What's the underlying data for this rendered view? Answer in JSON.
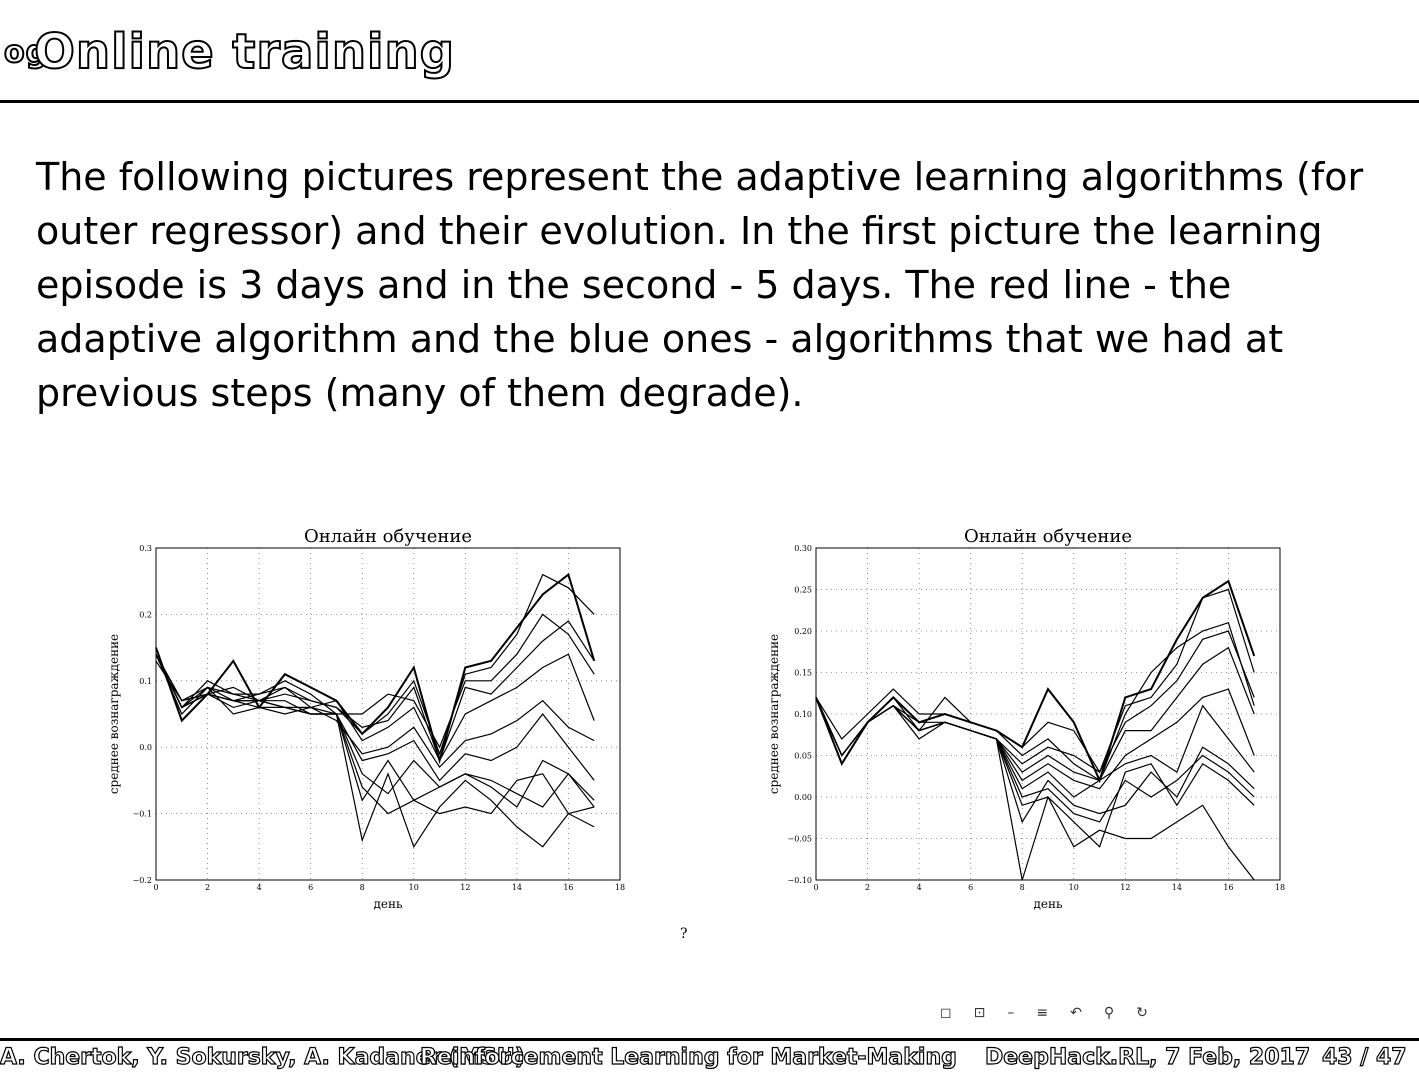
{
  "slide": {
    "title": "Online training",
    "title_prefix": "og",
    "body": "The following pictures represent the adaptive learning algorithms (for outer regressor) and their evolution. In the first picture the learning episode is 3 days and in the second - 5 days. The red line - the adaptive algorithm and the blue ones - algorithms that we had at previous steps (many of them degrade).",
    "stray_char": "?"
  },
  "footer": {
    "authors": "A. Chertok, Y. Sokursky, A. Kadaner (MSU)",
    "talk": "Reinforcement Learning for Market-Making",
    "event": "DeepHack.RL, 7 Feb, 2017",
    "page": "43 / 47"
  },
  "nav_icons": [
    "frame-icon",
    "subsection-icon",
    "section-icon",
    "align-icon",
    "back-icon",
    "search-icon",
    "refresh-icon"
  ],
  "colors": {
    "line": "#000000",
    "grid": "#777777"
  },
  "chart_data": [
    {
      "type": "line",
      "title": "Онлайн обучение",
      "xlabel": "день",
      "ylabel": "среднее вознаграждение",
      "xlim": [
        0,
        18
      ],
      "ylim": [
        -0.2,
        0.3
      ],
      "xticks": [
        0,
        2,
        4,
        6,
        8,
        10,
        12,
        14,
        16,
        18
      ],
      "yticks": [
        -0.2,
        -0.1,
        0.0,
        0.1,
        0.2,
        0.3
      ],
      "xtick_labels": [
        "0",
        "2",
        "4",
        "6",
        "8",
        "10",
        "12",
        "14",
        "16",
        "18"
      ],
      "ytick_labels": [
        "−0.2",
        "−0.1",
        "0.0",
        "0.1",
        "0.2",
        "0.3"
      ],
      "grid": true,
      "series": [
        {
          "x": [
            0,
            1,
            2,
            3,
            4,
            5,
            6,
            7,
            8,
            9,
            10,
            11,
            12,
            13,
            14,
            15,
            16,
            17
          ],
          "values": [
            0.15,
            0.04,
            0.08,
            0.13,
            0.06,
            0.11,
            0.09,
            0.07,
            0.02,
            0.06,
            0.12,
            -0.02,
            0.12,
            0.13,
            0.18,
            0.23,
            0.26,
            0.13
          ]
        },
        {
          "x": [
            0,
            1,
            2,
            3,
            4,
            5,
            6,
            7,
            8,
            9,
            10,
            11,
            12,
            13,
            14,
            15,
            16,
            17
          ],
          "values": [
            0.14,
            0.07,
            0.08,
            0.09,
            0.07,
            0.09,
            0.07,
            0.06,
            0.02,
            0.05,
            0.1,
            -0.01,
            0.11,
            0.12,
            0.17,
            0.26,
            0.24,
            0.2
          ]
        },
        {
          "x": [
            0,
            1,
            2,
            3,
            4,
            5,
            6,
            7,
            8,
            9,
            10,
            11,
            12,
            13,
            14,
            15,
            16,
            17
          ],
          "values": [
            0.13,
            0.07,
            0.09,
            0.08,
            0.08,
            0.1,
            0.08,
            0.05,
            0.05,
            0.08,
            0.07,
            0.0,
            0.1,
            0.1,
            0.14,
            0.2,
            0.17,
            0.11
          ]
        },
        {
          "x": [
            0,
            1,
            2,
            3,
            4,
            5,
            6,
            7,
            8,
            9,
            10,
            11,
            12,
            13,
            14,
            15,
            16,
            17
          ],
          "values": [
            0.14,
            0.06,
            0.1,
            0.08,
            0.07,
            0.08,
            0.07,
            0.06,
            0.03,
            0.04,
            0.09,
            -0.02,
            0.09,
            0.08,
            0.12,
            0.16,
            0.19,
            0.13
          ]
        },
        {
          "x": [
            0,
            1,
            2,
            3,
            4,
            5,
            6,
            7,
            8,
            9,
            10,
            11,
            12,
            13,
            14,
            15,
            16,
            17
          ],
          "values": [
            0.14,
            0.07,
            0.08,
            0.07,
            0.08,
            0.09,
            0.06,
            0.07,
            0.01,
            0.03,
            0.06,
            -0.02,
            0.05,
            0.07,
            0.09,
            0.12,
            0.14,
            0.04
          ]
        },
        {
          "x": [
            0,
            1,
            2,
            3,
            4,
            5,
            6,
            7,
            8,
            9,
            10,
            11,
            12,
            13,
            14,
            15,
            16,
            17
          ],
          "values": [
            0.14,
            0.05,
            0.09,
            0.05,
            0.06,
            0.05,
            0.06,
            0.04,
            -0.01,
            0.0,
            0.03,
            -0.03,
            0.01,
            0.02,
            0.04,
            0.07,
            0.03,
            0.01
          ]
        },
        {
          "x": [
            0,
            1,
            2,
            3,
            4,
            5,
            6,
            7,
            8,
            9,
            10,
            11,
            12,
            13,
            14,
            15,
            16,
            17
          ],
          "values": [
            0.14,
            0.06,
            0.08,
            0.06,
            0.07,
            0.07,
            0.05,
            0.05,
            -0.02,
            -0.01,
            0.01,
            -0.05,
            -0.01,
            -0.02,
            0.0,
            0.05,
            0.0,
            -0.05
          ]
        },
        {
          "x": [
            0,
            1,
            2,
            3,
            4,
            5,
            6,
            7,
            8,
            9,
            10,
            11,
            12,
            13,
            14,
            15,
            16,
            17
          ],
          "values": [
            0.14,
            0.06,
            0.09,
            0.07,
            0.06,
            0.06,
            0.06,
            0.05,
            -0.04,
            -0.07,
            -0.02,
            -0.06,
            -0.04,
            -0.06,
            -0.09,
            -0.02,
            -0.04,
            -0.09
          ]
        },
        {
          "x": [
            0,
            1,
            2,
            3,
            4,
            5,
            6,
            7,
            8,
            9,
            10,
            11,
            12,
            13,
            14,
            15,
            16,
            17
          ],
          "values": [
            0.14,
            0.06,
            0.08,
            0.07,
            0.07,
            0.06,
            0.05,
            0.05,
            -0.06,
            -0.1,
            -0.08,
            -0.1,
            -0.09,
            -0.1,
            -0.05,
            -0.04,
            -0.1,
            -0.12
          ]
        },
        {
          "x": [
            0,
            1,
            2,
            3,
            4,
            5,
            6,
            7,
            8,
            9,
            10,
            11,
            12,
            13,
            14,
            15,
            16,
            17
          ],
          "values": [
            0.14,
            0.06,
            0.08,
            0.07,
            0.07,
            0.06,
            0.05,
            0.05,
            -0.14,
            -0.04,
            -0.15,
            -0.09,
            -0.05,
            -0.08,
            -0.12,
            -0.15,
            -0.1,
            -0.09
          ]
        },
        {
          "x": [
            0,
            1,
            2,
            3,
            4,
            5,
            6,
            7,
            8,
            9,
            10,
            11,
            12,
            13,
            14,
            15,
            16,
            17
          ],
          "values": [
            0.14,
            0.06,
            0.08,
            0.07,
            0.07,
            0.06,
            0.05,
            0.05,
            -0.08,
            -0.02,
            -0.08,
            -0.06,
            -0.04,
            -0.05,
            -0.07,
            -0.09,
            -0.04,
            -0.08
          ]
        }
      ]
    },
    {
      "type": "line",
      "title": "Онлайн обучение",
      "xlabel": "день",
      "ylabel": "среднее вознаграждение",
      "xlim": [
        0,
        18
      ],
      "ylim": [
        -0.1,
        0.3
      ],
      "xticks": [
        0,
        2,
        4,
        6,
        8,
        10,
        12,
        14,
        16,
        18
      ],
      "yticks": [
        -0.1,
        -0.05,
        0.0,
        0.05,
        0.1,
        0.15,
        0.2,
        0.25,
        0.3
      ],
      "xtick_labels": [
        "0",
        "2",
        "4",
        "6",
        "8",
        "10",
        "12",
        "14",
        "16",
        "18"
      ],
      "ytick_labels": [
        "−0.10",
        "−0.05",
        "0.00",
        "0.05",
        "0.10",
        "0.15",
        "0.20",
        "0.25",
        "0.30"
      ],
      "grid": true,
      "series": [
        {
          "x": [
            0,
            1,
            2,
            3,
            4,
            5,
            6,
            7,
            8,
            9,
            10,
            11,
            12,
            13,
            14,
            15,
            16,
            17
          ],
          "values": [
            0.12,
            0.04,
            0.09,
            0.12,
            0.09,
            0.1,
            0.09,
            0.08,
            0.06,
            0.13,
            0.09,
            0.02,
            0.12,
            0.13,
            0.19,
            0.24,
            0.26,
            0.17
          ]
        },
        {
          "x": [
            0,
            1,
            2,
            3,
            4,
            5,
            6,
            7,
            8,
            9,
            10,
            11,
            12,
            13,
            14,
            15,
            16,
            17
          ],
          "values": [
            0.12,
            0.07,
            0.1,
            0.13,
            0.1,
            0.1,
            0.09,
            0.08,
            0.06,
            0.09,
            0.08,
            0.03,
            0.11,
            0.12,
            0.16,
            0.24,
            0.25,
            0.15
          ]
        },
        {
          "x": [
            0,
            1,
            2,
            3,
            4,
            5,
            6,
            7,
            8,
            9,
            10,
            11,
            12,
            13,
            14,
            15,
            16,
            17
          ],
          "values": [
            0.12,
            0.05,
            0.09,
            0.12,
            0.08,
            0.12,
            0.09,
            0.08,
            0.05,
            0.07,
            0.04,
            0.02,
            0.1,
            0.15,
            0.18,
            0.2,
            0.21,
            0.11
          ]
        },
        {
          "x": [
            0,
            1,
            2,
            3,
            4,
            5,
            6,
            7,
            8,
            9,
            10,
            11,
            12,
            13,
            14,
            15,
            16,
            17
          ],
          "values": [
            0.12,
            0.05,
            0.09,
            0.11,
            0.09,
            0.09,
            0.08,
            0.07,
            0.04,
            0.06,
            0.05,
            0.03,
            0.09,
            0.11,
            0.14,
            0.19,
            0.2,
            0.12
          ]
        },
        {
          "x": [
            0,
            1,
            2,
            3,
            4,
            5,
            6,
            7,
            8,
            9,
            10,
            11,
            12,
            13,
            14,
            15,
            16,
            17
          ],
          "values": [
            0.12,
            0.05,
            0.09,
            0.11,
            0.07,
            0.09,
            0.08,
            0.07,
            0.03,
            0.05,
            0.03,
            0.02,
            0.08,
            0.08,
            0.12,
            0.16,
            0.18,
            0.1
          ]
        },
        {
          "x": [
            0,
            1,
            2,
            3,
            4,
            5,
            6,
            7,
            8,
            9,
            10,
            11,
            12,
            13,
            14,
            15,
            16,
            17
          ],
          "values": [
            0.12,
            0.05,
            0.09,
            0.11,
            0.08,
            0.09,
            0.08,
            0.07,
            0.02,
            0.04,
            0.02,
            0.01,
            0.05,
            0.07,
            0.09,
            0.12,
            0.13,
            0.05
          ]
        },
        {
          "x": [
            0,
            1,
            2,
            3,
            4,
            5,
            6,
            7,
            8,
            9,
            10,
            11,
            12,
            13,
            14,
            15,
            16,
            17
          ],
          "values": [
            0.12,
            0.05,
            0.09,
            0.11,
            0.08,
            0.09,
            0.08,
            0.07,
            0.01,
            0.03,
            0.0,
            0.02,
            0.04,
            0.05,
            0.03,
            0.11,
            0.07,
            0.03
          ]
        },
        {
          "x": [
            0,
            1,
            2,
            3,
            4,
            5,
            6,
            7,
            8,
            9,
            10,
            11,
            12,
            13,
            14,
            15,
            16,
            17
          ],
          "values": [
            0.12,
            0.05,
            0.09,
            0.11,
            0.08,
            0.09,
            0.08,
            0.07,
            0.0,
            0.01,
            -0.02,
            -0.03,
            0.02,
            0.0,
            0.02,
            0.05,
            0.03,
            0.0
          ]
        },
        {
          "x": [
            0,
            1,
            2,
            3,
            4,
            5,
            6,
            7,
            8,
            9,
            10,
            11,
            12,
            13,
            14,
            15,
            16,
            17
          ],
          "values": [
            0.12,
            0.05,
            0.09,
            0.11,
            0.08,
            0.09,
            0.08,
            0.07,
            -0.03,
            0.02,
            -0.01,
            -0.02,
            -0.01,
            0.03,
            0.0,
            0.06,
            0.04,
            0.01
          ]
        },
        {
          "x": [
            0,
            1,
            2,
            3,
            4,
            5,
            6,
            7,
            8,
            9,
            10,
            11,
            12,
            13,
            14,
            15,
            16,
            17
          ],
          "values": [
            0.12,
            0.05,
            0.09,
            0.11,
            0.08,
            0.09,
            0.08,
            0.07,
            -0.01,
            0.0,
            -0.06,
            -0.04,
            -0.05,
            -0.05,
            -0.03,
            -0.01,
            -0.06,
            -0.1
          ]
        },
        {
          "x": [
            0,
            1,
            2,
            3,
            4,
            5,
            6,
            7,
            8,
            9,
            10,
            11,
            12,
            13,
            14,
            15,
            16,
            17
          ],
          "values": [
            0.12,
            0.05,
            0.09,
            0.11,
            0.08,
            0.09,
            0.08,
            0.07,
            -0.1,
            0.0,
            -0.03,
            -0.06,
            0.03,
            0.04,
            -0.01,
            0.04,
            0.02,
            -0.01
          ]
        }
      ]
    }
  ]
}
